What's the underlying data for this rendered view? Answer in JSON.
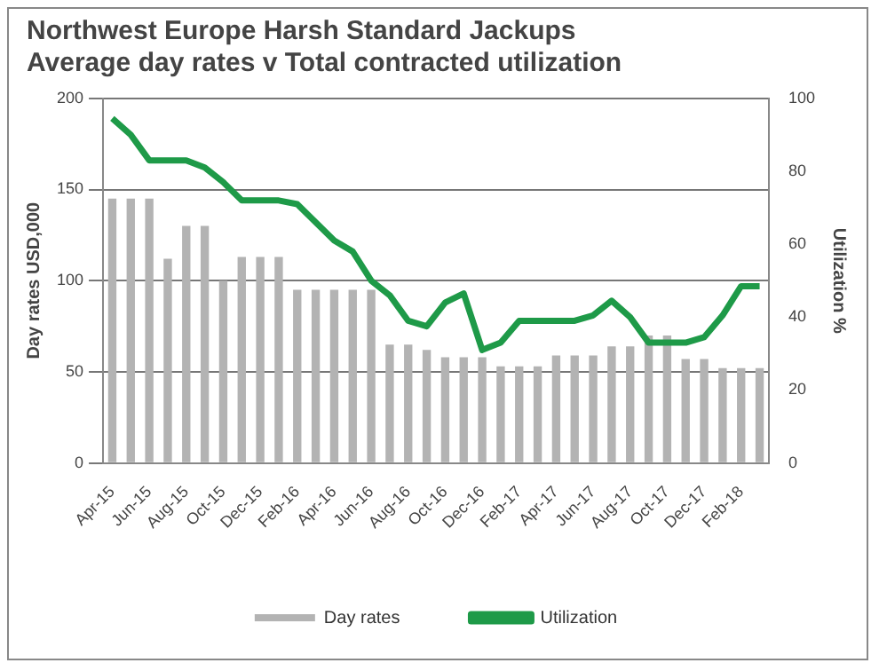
{
  "chart_data": {
    "type": "bar",
    "title": "Northwest Europe Harsh Standard Jackups\nAverage day rates v Total contracted utilization",
    "ylabel": "Day rates USD,000",
    "y2label": "Utilization %",
    "categories": [
      "Apr-15",
      null,
      "Jun-15",
      null,
      "Aug-15",
      null,
      "Oct-15",
      null,
      "Dec-15",
      null,
      "Feb-16",
      null,
      "Apr-16",
      null,
      "Jun-16",
      null,
      "Aug-16",
      null,
      "Oct-16",
      null,
      "Dec-16",
      null,
      "Feb-17",
      null,
      "Apr-17",
      null,
      "Jun-17",
      null,
      "Aug-17",
      null,
      "Oct-17",
      null,
      "Dec-17",
      null,
      "Feb-18",
      null
    ],
    "series": [
      {
        "name": "Day rates",
        "color": "#b3b3b3",
        "values": [
          145,
          145,
          145,
          112,
          130,
          130,
          100,
          113,
          113,
          113,
          95,
          95,
          95,
          95,
          95,
          65,
          65,
          62,
          58,
          58,
          58,
          53,
          53,
          53,
          59,
          59,
          59,
          64,
          64,
          70,
          70,
          57,
          57,
          52,
          52,
          52
        ]
      },
      {
        "name": "Utilization",
        "type": "line",
        "axis": "y2",
        "color": "#1e9a48",
        "values": [
          94.5,
          90,
          83,
          83,
          83,
          81,
          77,
          72,
          72,
          72,
          71,
          66,
          61,
          58,
          50,
          46,
          39,
          37.5,
          44,
          46.5,
          31,
          33,
          39,
          39,
          39,
          39,
          40.5,
          44.5,
          40,
          33,
          33,
          33,
          34.5,
          40.5,
          48.5,
          48.5
        ]
      }
    ],
    "ylim": [
      0,
      200
    ],
    "yticks": [
      0,
      50,
      100,
      150,
      200
    ],
    "y2lim": [
      0,
      100
    ],
    "y2ticks": [
      0,
      20,
      40,
      60,
      80,
      100
    ],
    "grid": "y",
    "legend": "bottom",
    "marker": "none",
    "line_style": "solid"
  }
}
